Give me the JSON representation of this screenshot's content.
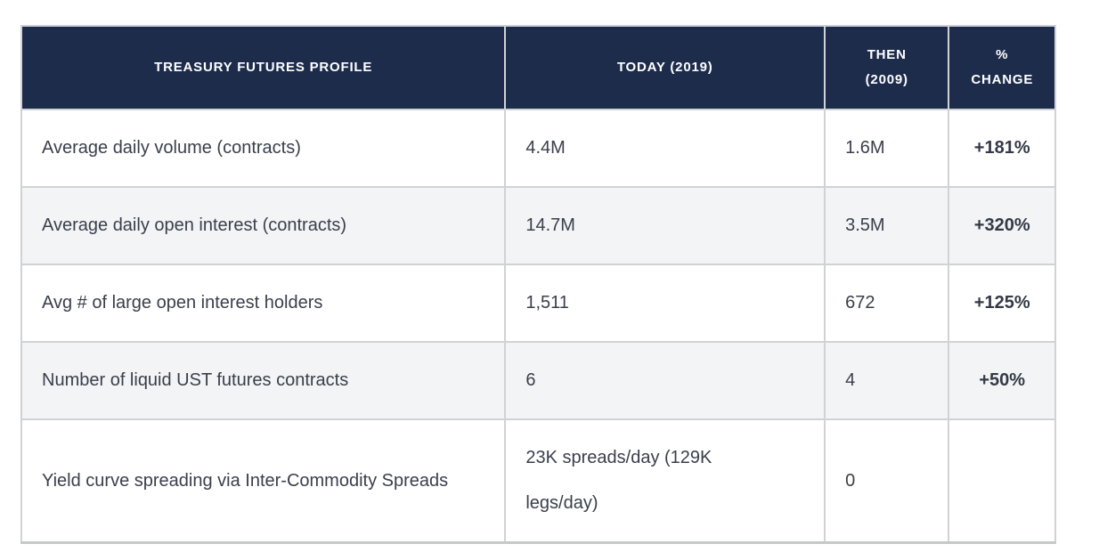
{
  "table": {
    "columns": [
      {
        "label": "TREASURY FUTURES PROFILE"
      },
      {
        "label": "TODAY (2019)"
      },
      {
        "label": "THEN (2009)"
      },
      {
        "label": "% CHANGE"
      }
    ],
    "rows": [
      {
        "metric": "Average daily volume (contracts)",
        "today": "4.4M",
        "then": "1.6M",
        "change": "+181%"
      },
      {
        "metric": "Average daily open interest (contracts)",
        "today": "14.7M",
        "then": "3.5M",
        "change": "+320%"
      },
      {
        "metric": "Avg # of large open interest holders",
        "today": "1,511",
        "then": "672",
        "change": "+125%"
      },
      {
        "metric": "Number of liquid UST futures contracts",
        "today": "6",
        "then": "4",
        "change": "+50%"
      },
      {
        "metric": "Yield curve spreading via Inter-Commodity Spreads",
        "today": "23K spreads/day (129K legs/day)",
        "then": "0",
        "change": ""
      }
    ],
    "colors": {
      "header_bg": "#1e2c4c",
      "header_text": "#ffffff",
      "row_bg": "#ffffff",
      "row_alt_bg": "#f3f4f6",
      "body_text": "#393f4b",
      "border": "#d0d2d5"
    }
  }
}
